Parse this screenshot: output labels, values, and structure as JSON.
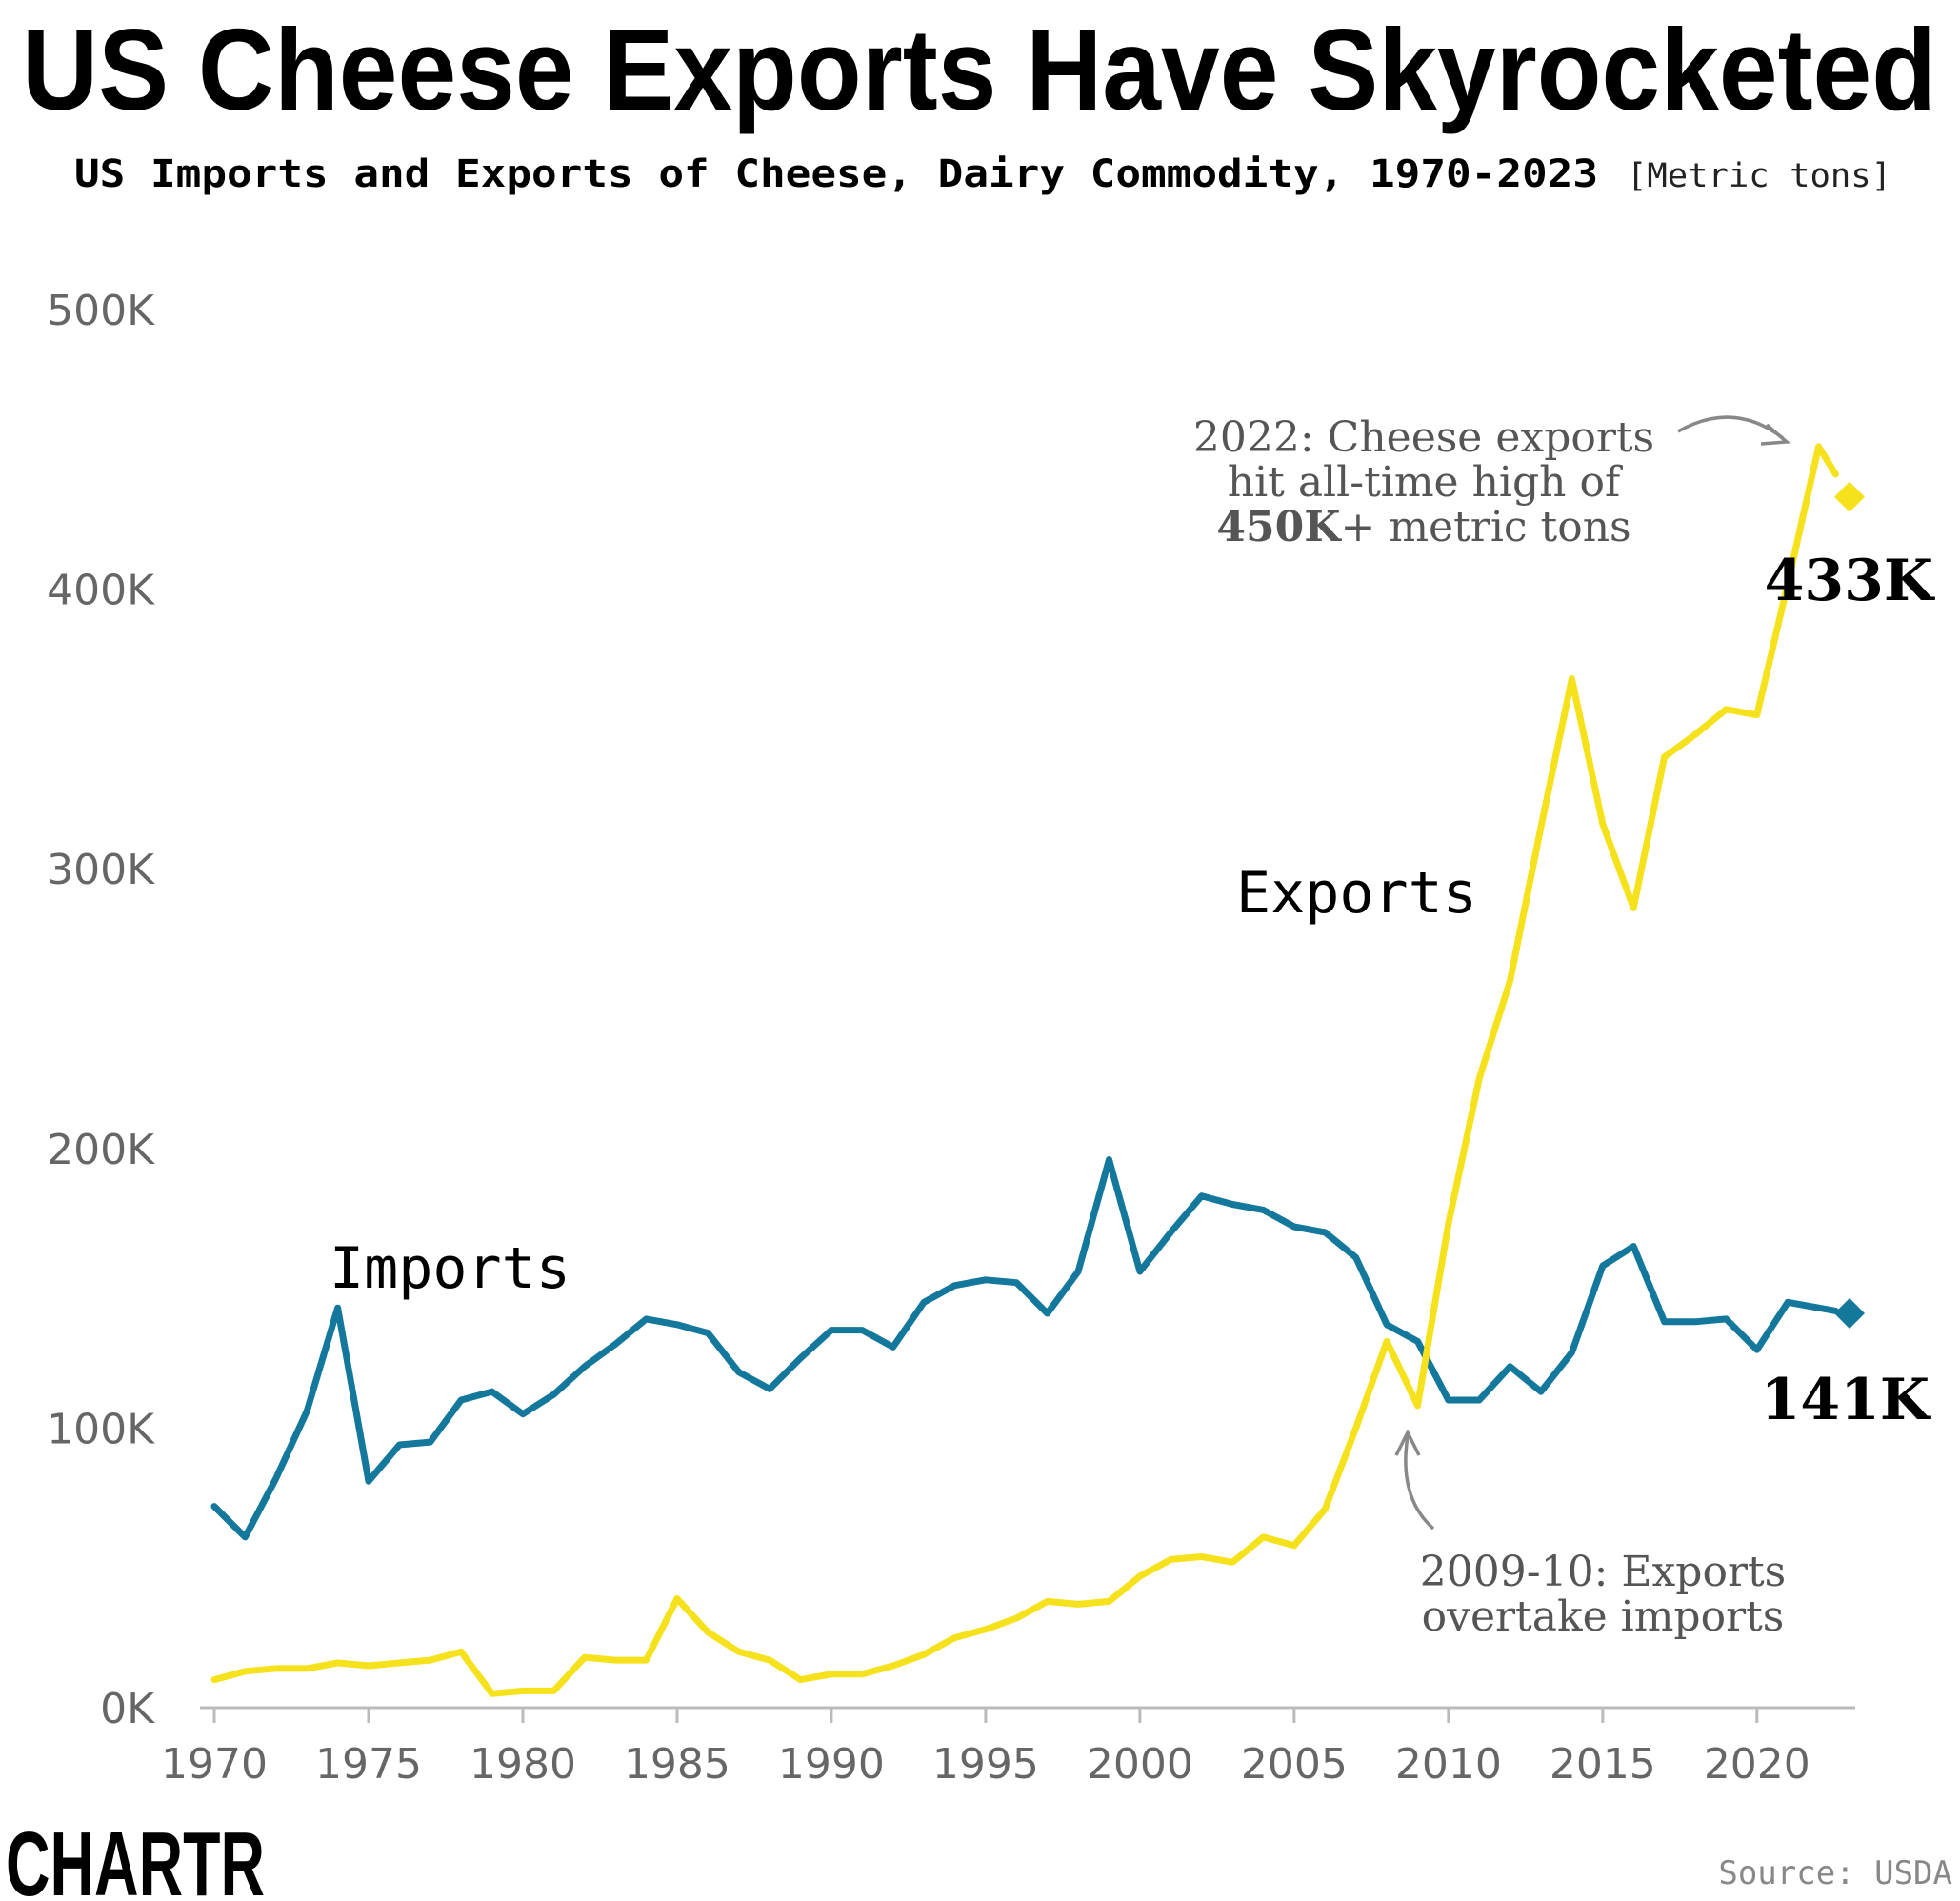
{
  "header": {
    "title": "US Cheese Exports Have Skyrocketed",
    "subtitle": "US Imports and Exports of Cheese, Dairy Commodity, 1970-2023",
    "unit": "[Metric tons]"
  },
  "footer": {
    "logo_text": "CHARTR",
    "source": "Source: USDA"
  },
  "colors": {
    "imports": "#13789b",
    "exports": "#f5e21d",
    "axis": "#bbbbbb",
    "tick_text": "#666666",
    "annotation_text": "#555555",
    "arrow": "#888888"
  },
  "annotations": {
    "peak": {
      "line1": "2022: Cheese exports",
      "line2": "hit all-time high of",
      "line3_bold": "450K",
      "line3_rest": "+ metric tons"
    },
    "crossover": {
      "line1": "2009-10: Exports",
      "line2": "overtake imports"
    }
  },
  "chart_data": {
    "type": "line",
    "title": "US Cheese Exports Have Skyrocketed",
    "subtitle": "US Imports and Exports of Cheese, Dairy Commodity, 1970-2023",
    "ylabel": "",
    "xlabel": "",
    "xlim": [
      1970,
      2023
    ],
    "ylim": [
      0,
      500000
    ],
    "x_ticks": [
      1970,
      1975,
      1980,
      1985,
      1990,
      1995,
      2000,
      2005,
      2010,
      2015,
      2020
    ],
    "x_tick_labels": [
      "1970",
      "1975",
      "1980",
      "1985",
      "1990",
      "1995",
      "2000",
      "2005",
      "2010",
      "2015",
      "2020"
    ],
    "y_ticks": [
      0,
      100000,
      200000,
      300000,
      400000,
      500000
    ],
    "y_tick_labels": [
      "0K",
      "100K",
      "200K",
      "300K",
      "400K",
      "500K"
    ],
    "grid": false,
    "x": [
      1970,
      1971,
      1972,
      1973,
      1974,
      1975,
      1976,
      1977,
      1978,
      1979,
      1980,
      1981,
      1982,
      1983,
      1984,
      1985,
      1986,
      1987,
      1988,
      1989,
      1990,
      1991,
      1992,
      1993,
      1994,
      1995,
      1996,
      1997,
      1998,
      1999,
      2000,
      2001,
      2002,
      2003,
      2004,
      2005,
      2006,
      2007,
      2008,
      2009,
      2010,
      2011,
      2012,
      2013,
      2014,
      2015,
      2016,
      2017,
      2018,
      2019,
      2020,
      2021,
      2022,
      2023
    ],
    "series": [
      {
        "name": "Imports",
        "end_label": "141K",
        "values": [
          72000,
          61000,
          82000,
          106000,
          143000,
          81000,
          94000,
          95000,
          110000,
          113000,
          105000,
          112000,
          122000,
          130000,
          139000,
          137000,
          134000,
          120000,
          114000,
          125000,
          135000,
          135000,
          129000,
          145000,
          151000,
          153000,
          152000,
          141000,
          156000,
          196000,
          156000,
          170000,
          183000,
          180000,
          178000,
          172000,
          170000,
          161000,
          137000,
          131000,
          110000,
          110000,
          122000,
          113000,
          127000,
          158000,
          165000,
          138000,
          138000,
          139000,
          128000,
          145000,
          143000,
          141000
        ]
      },
      {
        "name": "Exports",
        "end_label": "433K",
        "values": [
          10000,
          13000,
          14000,
          14000,
          16000,
          15000,
          16000,
          17000,
          20000,
          5000,
          6000,
          6000,
          18000,
          17000,
          17000,
          39000,
          27000,
          20000,
          17000,
          10000,
          12000,
          12000,
          15000,
          19000,
          25000,
          28000,
          32000,
          38000,
          37000,
          38000,
          47000,
          53000,
          54000,
          52000,
          61000,
          58000,
          71000,
          100000,
          131000,
          108000,
          173000,
          225000,
          260000,
          315000,
          368000,
          316000,
          286000,
          340000,
          348000,
          357000,
          355000,
          402000,
          451000,
          433000
        ]
      }
    ]
  }
}
